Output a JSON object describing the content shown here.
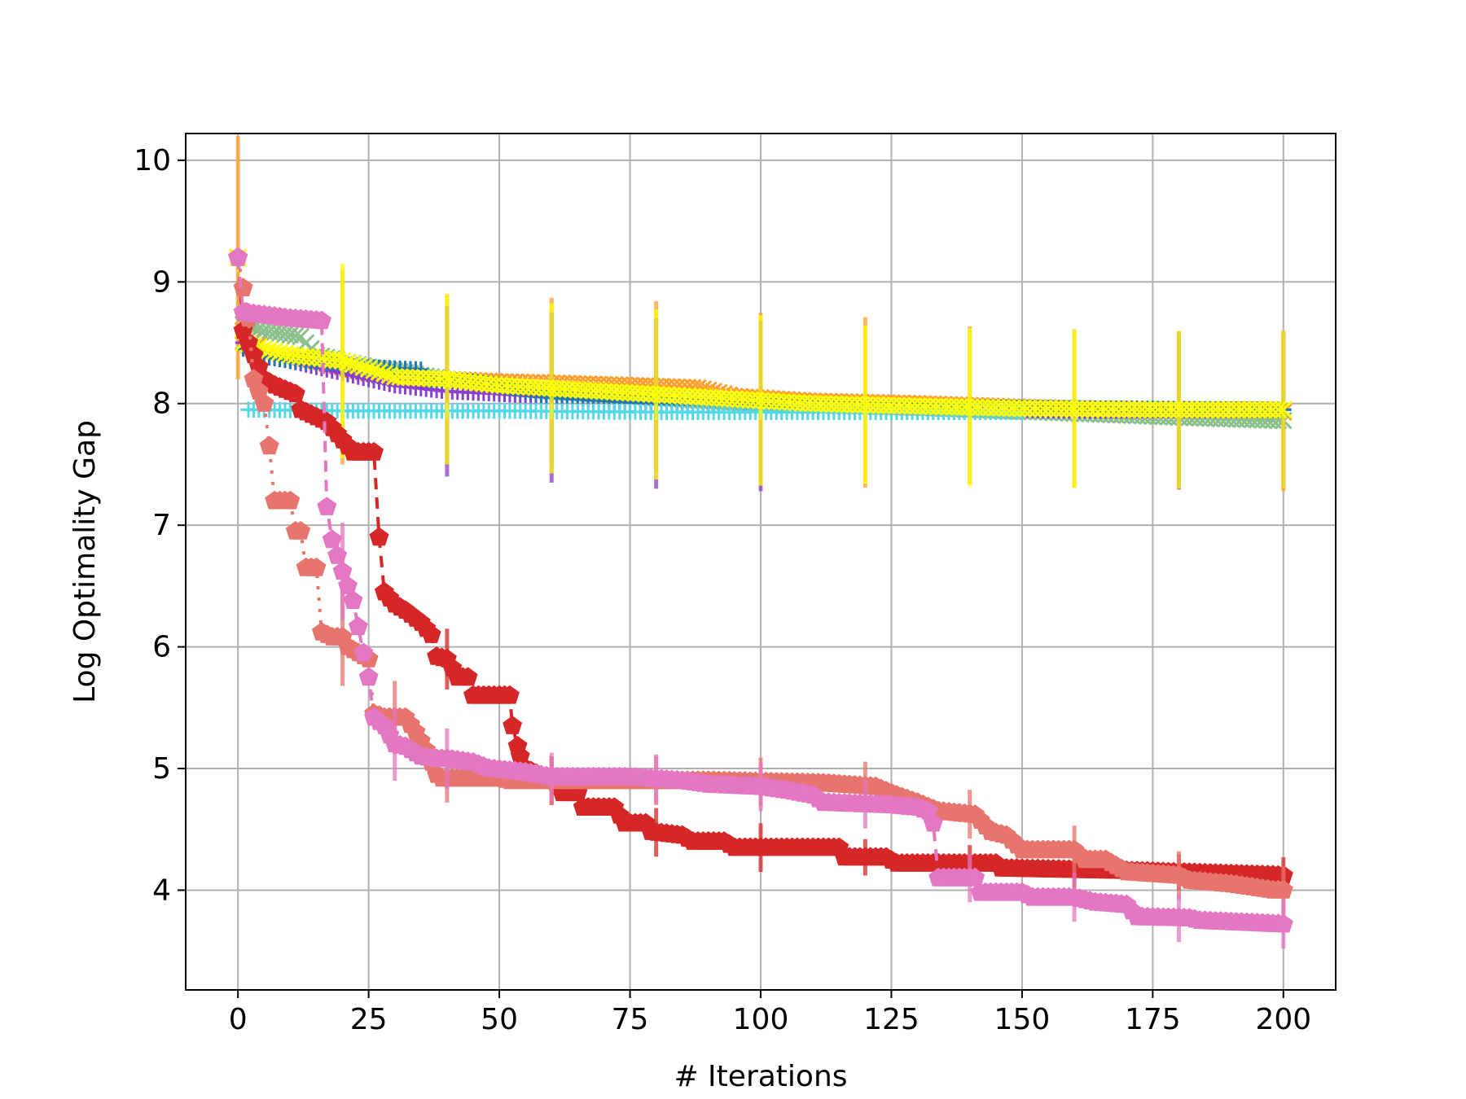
{
  "chart_data": {
    "type": "line",
    "title": "",
    "xlabel": "# Iterations",
    "ylabel": "Log Optimality Gap",
    "xlim": [
      -10,
      210
    ],
    "ylim": [
      3.18,
      10.22
    ],
    "xticks": [
      0,
      25,
      50,
      75,
      100,
      125,
      150,
      175,
      200
    ],
    "yticks": [
      4,
      5,
      6,
      7,
      8,
      9,
      10
    ],
    "xtick_labels": [
      "0",
      "25",
      "50",
      "75",
      "100",
      "125",
      "150",
      "175",
      "200"
    ],
    "ytick_labels": [
      "4",
      "5",
      "6",
      "7",
      "8",
      "9",
      "10"
    ],
    "grid": true,
    "legend": "none",
    "series": [
      {
        "color": "#ff9f2e",
        "marker": "x",
        "size": 7,
        "points": [
          [
            0,
            9.2
          ],
          [
            1,
            8.6
          ],
          [
            5,
            8.45
          ],
          [
            10,
            8.4
          ],
          [
            15,
            8.35
          ],
          [
            20,
            8.3
          ],
          [
            25,
            8.25
          ],
          [
            30,
            8.22
          ],
          [
            40,
            8.2
          ],
          [
            50,
            8.18
          ],
          [
            60,
            8.17
          ],
          [
            75,
            8.15
          ],
          [
            88,
            8.13
          ],
          [
            95,
            8.06
          ],
          [
            110,
            8.02
          ],
          [
            130,
            8.0
          ],
          [
            150,
            7.97
          ],
          [
            170,
            7.95
          ],
          [
            200,
            7.93
          ]
        ],
        "errorbars": [
          [
            0,
            1.0
          ],
          [
            20,
            0.8
          ],
          [
            40,
            0.7
          ],
          [
            60,
            0.7
          ],
          [
            80,
            0.7
          ],
          [
            100,
            0.7
          ],
          [
            120,
            0.7
          ],
          [
            140,
            0.65
          ],
          [
            160,
            0.65
          ],
          [
            180,
            0.65
          ],
          [
            200,
            0.65
          ]
        ]
      },
      {
        "color": "#8bbf8b",
        "marker": "x",
        "size": 7,
        "points": [
          [
            0,
            9.2
          ],
          [
            1,
            8.65
          ],
          [
            5,
            8.6
          ],
          [
            12,
            8.55
          ],
          [
            15,
            8.4
          ],
          [
            25,
            8.3
          ],
          [
            40,
            8.2
          ],
          [
            60,
            8.1
          ],
          [
            80,
            8.05
          ],
          [
            100,
            8.0
          ],
          [
            130,
            7.97
          ],
          [
            160,
            7.92
          ],
          [
            185,
            7.88
          ],
          [
            200,
            7.86
          ]
        ],
        "errorbars": []
      },
      {
        "color": "#8a3fcf",
        "marker": "plus",
        "size": 7,
        "points": [
          [
            0,
            9.2
          ],
          [
            1,
            8.5
          ],
          [
            5,
            8.4
          ],
          [
            15,
            8.3
          ],
          [
            25,
            8.2
          ],
          [
            30,
            8.15
          ],
          [
            40,
            8.1
          ],
          [
            50,
            8.08
          ],
          [
            60,
            8.05
          ],
          [
            80,
            8.0
          ],
          [
            100,
            7.98
          ],
          [
            130,
            7.96
          ],
          [
            160,
            7.94
          ],
          [
            200,
            7.95
          ]
        ],
        "errorbars": [
          [
            40,
            0.7
          ],
          [
            60,
            0.7
          ],
          [
            80,
            0.7
          ],
          [
            100,
            0.7
          ],
          [
            180,
            0.65
          ],
          [
            200,
            0.65
          ]
        ]
      },
      {
        "color": "#1f77b4",
        "marker": "plus",
        "size": 7,
        "points": [
          [
            1,
            8.45
          ],
          [
            3,
            8.4
          ],
          [
            10,
            8.35
          ],
          [
            20,
            8.33
          ],
          [
            25,
            8.3
          ],
          [
            35,
            8.28
          ],
          [
            36,
            8.2
          ],
          [
            45,
            8.18
          ],
          [
            50,
            8.15
          ],
          [
            60,
            8.05
          ],
          [
            80,
            8.0
          ],
          [
            100,
            7.98
          ],
          [
            200,
            7.95
          ]
        ],
        "errorbars": []
      },
      {
        "color": "#55d8e6",
        "marker": "plus",
        "size": 7,
        "points": [
          [
            2,
            7.95
          ],
          [
            20,
            7.94
          ],
          [
            50,
            7.94
          ],
          [
            80,
            7.93
          ],
          [
            100,
            7.93
          ],
          [
            130,
            7.93
          ],
          [
            150,
            7.93
          ]
        ],
        "errorbars": []
      },
      {
        "color": "#ffff00",
        "marker": "x",
        "size": 7,
        "points": [
          [
            0,
            9.2
          ],
          [
            1,
            8.5
          ],
          [
            5,
            8.45
          ],
          [
            10,
            8.4
          ],
          [
            20,
            8.35
          ],
          [
            30,
            8.22
          ],
          [
            40,
            8.2
          ],
          [
            50,
            8.15
          ],
          [
            70,
            8.1
          ],
          [
            90,
            8.05
          ],
          [
            110,
            8.0
          ],
          [
            130,
            7.98
          ],
          [
            150,
            7.96
          ],
          [
            175,
            7.95
          ],
          [
            200,
            7.95
          ]
        ],
        "errorbars": [
          [
            20,
            0.8
          ],
          [
            40,
            0.7
          ],
          [
            60,
            0.7
          ],
          [
            80,
            0.7
          ],
          [
            100,
            0.7
          ],
          [
            120,
            0.65
          ],
          [
            140,
            0.65
          ],
          [
            160,
            0.65
          ],
          [
            180,
            0.65
          ],
          [
            200,
            0.65
          ]
        ]
      },
      {
        "color": "#d62728",
        "marker": "pentagon",
        "size": 9,
        "dash": "dashed",
        "points": [
          [
            0,
            9.2
          ],
          [
            1,
            8.6
          ],
          [
            5,
            8.2
          ],
          [
            7,
            8.15
          ],
          [
            11,
            8.08
          ],
          [
            12,
            7.95
          ],
          [
            17,
            7.85
          ],
          [
            20,
            7.7
          ],
          [
            22,
            7.6
          ],
          [
            26,
            7.6
          ],
          [
            27,
            6.9
          ],
          [
            28,
            6.45
          ],
          [
            30,
            6.35
          ],
          [
            32,
            6.3
          ],
          [
            35,
            6.2
          ],
          [
            37,
            6.1
          ],
          [
            38,
            5.92
          ],
          [
            40,
            5.9
          ],
          [
            42,
            5.75
          ],
          [
            44,
            5.75
          ],
          [
            45,
            5.6
          ],
          [
            52,
            5.6
          ],
          [
            52.5,
            5.35
          ],
          [
            54,
            5.1
          ],
          [
            55,
            5.0
          ],
          [
            60,
            4.9
          ],
          [
            62,
            4.8
          ],
          [
            65,
            4.8
          ],
          [
            66,
            4.68
          ],
          [
            72,
            4.68
          ],
          [
            74,
            4.55
          ],
          [
            78,
            4.55
          ],
          [
            79,
            4.48
          ],
          [
            85,
            4.45
          ],
          [
            87,
            4.4
          ],
          [
            93,
            4.4
          ],
          [
            95,
            4.35
          ],
          [
            115,
            4.35
          ],
          [
            116,
            4.27
          ],
          [
            124,
            4.27
          ],
          [
            126,
            4.22
          ],
          [
            145,
            4.22
          ],
          [
            146,
            4.18
          ],
          [
            170,
            4.16
          ],
          [
            200,
            4.12
          ]
        ],
        "errorbars": [
          [
            40,
            0.25
          ],
          [
            60,
            0.2
          ],
          [
            80,
            0.2
          ],
          [
            100,
            0.2
          ],
          [
            120,
            0.15
          ],
          [
            140,
            0.15
          ],
          [
            160,
            0.15
          ],
          [
            180,
            0.15
          ],
          [
            200,
            0.15
          ]
        ]
      },
      {
        "color": "#e7756d",
        "marker": "pentagon",
        "size": 9,
        "dash": "dotted",
        "points": [
          [
            0,
            9.2
          ],
          [
            1,
            8.95
          ],
          [
            2,
            8.7
          ],
          [
            3,
            8.2
          ],
          [
            5,
            8.0
          ],
          [
            6,
            7.65
          ],
          [
            7,
            7.2
          ],
          [
            10,
            7.2
          ],
          [
            11,
            6.95
          ],
          [
            12,
            6.95
          ],
          [
            13,
            6.65
          ],
          [
            15,
            6.65
          ],
          [
            16,
            6.12
          ],
          [
            18,
            6.08
          ],
          [
            20,
            6.08
          ],
          [
            21,
            6.0
          ],
          [
            25,
            5.9
          ],
          [
            26,
            5.45
          ],
          [
            28,
            5.42
          ],
          [
            32,
            5.42
          ],
          [
            34,
            5.3
          ],
          [
            36,
            5.15
          ],
          [
            38,
            4.95
          ],
          [
            39,
            4.92
          ],
          [
            50,
            4.92
          ],
          [
            52,
            4.9
          ],
          [
            90,
            4.9
          ],
          [
            112,
            4.88
          ],
          [
            122,
            4.85
          ],
          [
            126,
            4.78
          ],
          [
            130,
            4.72
          ],
          [
            134,
            4.65
          ],
          [
            141,
            4.62
          ],
          [
            144,
            4.48
          ],
          [
            147,
            4.45
          ],
          [
            150,
            4.33
          ],
          [
            160,
            4.33
          ],
          [
            162,
            4.25
          ],
          [
            166,
            4.25
          ],
          [
            170,
            4.15
          ],
          [
            180,
            4.12
          ],
          [
            182,
            4.08
          ],
          [
            190,
            4.05
          ],
          [
            198,
            4.0
          ],
          [
            200,
            4.0
          ]
        ],
        "errorbars": [
          [
            20,
            0.4
          ],
          [
            30,
            0.3
          ],
          [
            40,
            0.2
          ],
          [
            60,
            0.2
          ],
          [
            80,
            0.2
          ],
          [
            100,
            0.2
          ],
          [
            120,
            0.2
          ],
          [
            140,
            0.2
          ],
          [
            160,
            0.2
          ],
          [
            180,
            0.2
          ],
          [
            200,
            0.2
          ]
        ]
      },
      {
        "color": "#e377c2",
        "marker": "pentagon",
        "size": 9,
        "dash": "dashed",
        "points": [
          [
            0,
            9.2
          ],
          [
            1,
            8.75
          ],
          [
            10,
            8.7
          ],
          [
            16,
            8.68
          ],
          [
            17,
            7.15
          ],
          [
            18,
            6.88
          ],
          [
            20,
            6.62
          ],
          [
            22,
            6.38
          ],
          [
            24,
            5.95
          ],
          [
            25,
            5.75
          ],
          [
            26,
            5.42
          ],
          [
            28,
            5.35
          ],
          [
            30,
            5.2
          ],
          [
            32,
            5.18
          ],
          [
            35,
            5.1
          ],
          [
            38,
            5.08
          ],
          [
            40,
            5.08
          ],
          [
            45,
            5.05
          ],
          [
            48,
            5.0
          ],
          [
            55,
            4.97
          ],
          [
            60,
            4.93
          ],
          [
            75,
            4.93
          ],
          [
            85,
            4.9
          ],
          [
            90,
            4.87
          ],
          [
            100,
            4.85
          ],
          [
            105,
            4.82
          ],
          [
            110,
            4.78
          ],
          [
            112,
            4.72
          ],
          [
            125,
            4.7
          ],
          [
            130,
            4.68
          ],
          [
            132,
            4.65
          ],
          [
            133,
            4.55
          ],
          [
            134,
            4.1
          ],
          [
            141,
            4.1
          ],
          [
            142,
            3.98
          ],
          [
            150,
            3.98
          ],
          [
            152,
            3.94
          ],
          [
            160,
            3.94
          ],
          [
            164,
            3.9
          ],
          [
            170,
            3.88
          ],
          [
            172,
            3.78
          ],
          [
            182,
            3.77
          ],
          [
            184,
            3.75
          ],
          [
            200,
            3.72
          ]
        ],
        "errorbars": [
          [
            20,
            0.4
          ],
          [
            30,
            0.3
          ],
          [
            40,
            0.25
          ],
          [
            60,
            0.2
          ],
          [
            80,
            0.2
          ],
          [
            100,
            0.2
          ],
          [
            120,
            0.2
          ],
          [
            140,
            0.2
          ],
          [
            160,
            0.2
          ],
          [
            180,
            0.2
          ],
          [
            200,
            0.2
          ]
        ]
      }
    ]
  }
}
